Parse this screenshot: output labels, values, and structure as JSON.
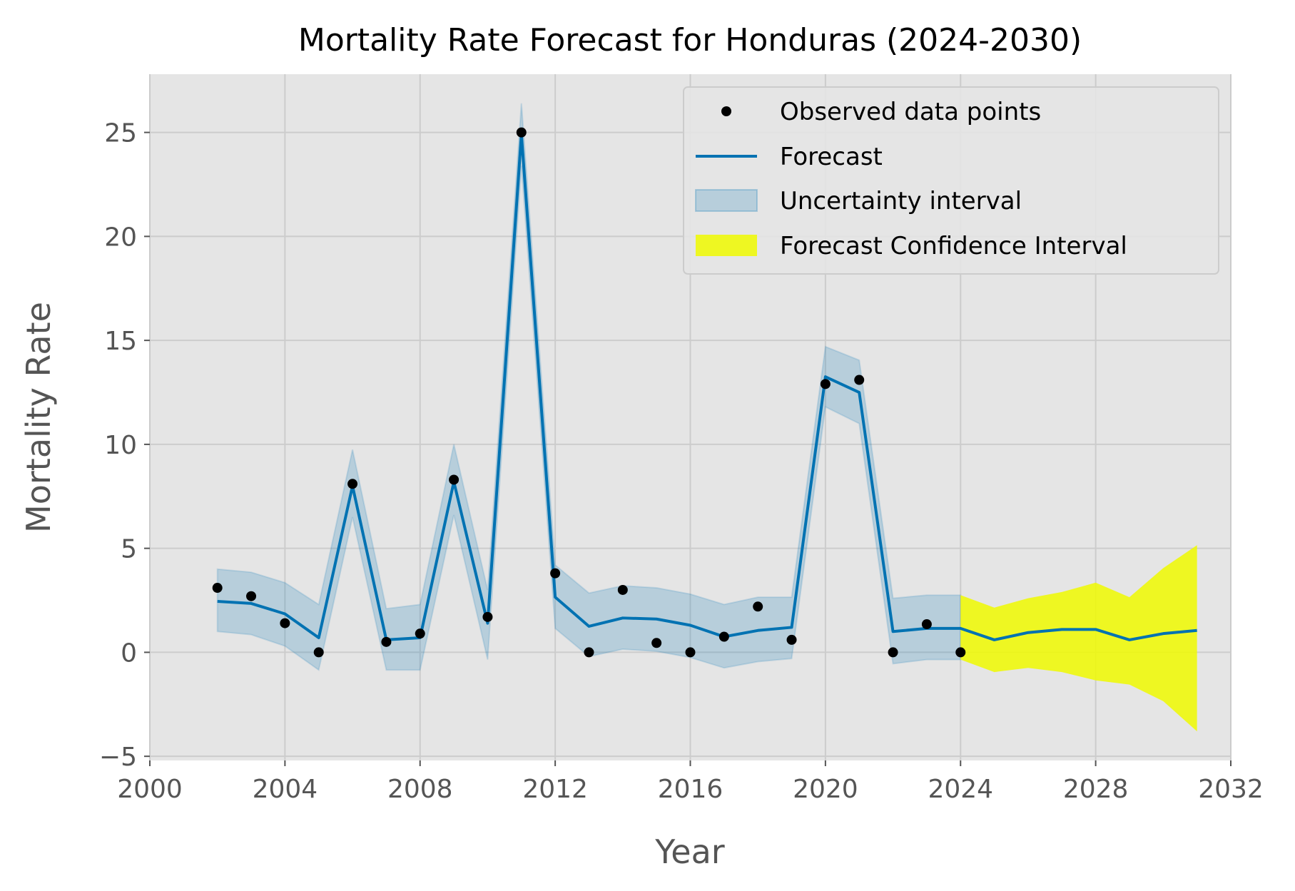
{
  "chart_data": {
    "type": "line",
    "title": "Mortality Rate Forecast for Honduras (2024-2030)",
    "xlabel": "Year",
    "ylabel": "Mortality Rate",
    "xlim": [
      2000,
      2032
    ],
    "ylim": [
      -5.2,
      27.8
    ],
    "xticks": [
      2000,
      2004,
      2008,
      2012,
      2016,
      2020,
      2024,
      2028,
      2032
    ],
    "yticks": [
      -5,
      0,
      5,
      10,
      15,
      20,
      25
    ],
    "ytick_labels": [
      "−5",
      "0",
      "5",
      "10",
      "15",
      "20",
      "25"
    ],
    "grid": true,
    "legend_position": "upper right",
    "observed": {
      "name": "Observed data points",
      "x": [
        2002,
        2003,
        2004,
        2005,
        2006,
        2007,
        2008,
        2009,
        2010,
        2011,
        2012,
        2013,
        2014,
        2015,
        2016,
        2017,
        2018,
        2019,
        2020,
        2021,
        2022,
        2023,
        2024
      ],
      "y": [
        3.1,
        2.7,
        1.4,
        0.0,
        8.1,
        0.5,
        0.9,
        8.3,
        1.7,
        25.0,
        3.8,
        0.0,
        3.0,
        0.45,
        0.0,
        0.75,
        2.2,
        0.6,
        12.9,
        13.1,
        0.0,
        1.35,
        0.0
      ]
    },
    "forecast": {
      "name": "Forecast",
      "x": [
        2002,
        2003,
        2004,
        2005,
        2006,
        2007,
        2008,
        2009,
        2010,
        2011,
        2012,
        2013,
        2014,
        2015,
        2016,
        2017,
        2018,
        2019,
        2020,
        2021,
        2022,
        2023,
        2024,
        2025,
        2026,
        2027,
        2028,
        2029,
        2030,
        2031
      ],
      "y": [
        2.45,
        2.35,
        1.85,
        0.7,
        8.0,
        0.6,
        0.7,
        8.2,
        1.4,
        24.9,
        2.65,
        1.25,
        1.65,
        1.6,
        1.3,
        0.75,
        1.05,
        1.2,
        13.25,
        12.5,
        1.0,
        1.15,
        1.15,
        0.6,
        0.95,
        1.1,
        1.1,
        0.6,
        0.9,
        1.05
      ]
    },
    "uncertainty_interval": {
      "name": "Uncertainty interval",
      "x": [
        2002,
        2003,
        2004,
        2005,
        2006,
        2007,
        2008,
        2009,
        2010,
        2011,
        2012,
        2013,
        2014,
        2015,
        2016,
        2017,
        2018,
        2019,
        2020,
        2021,
        2022,
        2023,
        2024
      ],
      "lower": [
        1.0,
        0.85,
        0.3,
        -0.85,
        6.5,
        -0.85,
        -0.85,
        6.6,
        -0.35,
        23.4,
        1.15,
        -0.2,
        0.15,
        0.05,
        -0.25,
        -0.75,
        -0.45,
        -0.3,
        11.8,
        11.0,
        -0.55,
        -0.35,
        -0.35
      ],
      "upper": [
        4.0,
        3.85,
        3.35,
        2.3,
        9.75,
        2.1,
        2.3,
        10.0,
        3.0,
        26.4,
        4.2,
        2.85,
        3.2,
        3.1,
        2.8,
        2.3,
        2.65,
        2.65,
        14.7,
        14.05,
        2.6,
        2.75,
        2.75
      ]
    },
    "forecast_interval": {
      "name": "Forecast Confidence Interval",
      "x": [
        2024,
        2025,
        2026,
        2027,
        2028,
        2029,
        2030,
        2031
      ],
      "lower": [
        -0.35,
        -0.95,
        -0.75,
        -0.95,
        -1.35,
        -1.55,
        -2.35,
        -3.8
      ],
      "upper": [
        2.75,
        2.15,
        2.6,
        2.9,
        3.35,
        2.65,
        4.05,
        5.15
      ]
    },
    "colors": {
      "forecast_line": "#0072b2",
      "uncertainty_fill": "#0072b2",
      "forecast_ci_fill": "#f0fa00",
      "observed_points": "#000000",
      "plot_background": "#e5e5e5",
      "grid": "#cccccc"
    }
  }
}
